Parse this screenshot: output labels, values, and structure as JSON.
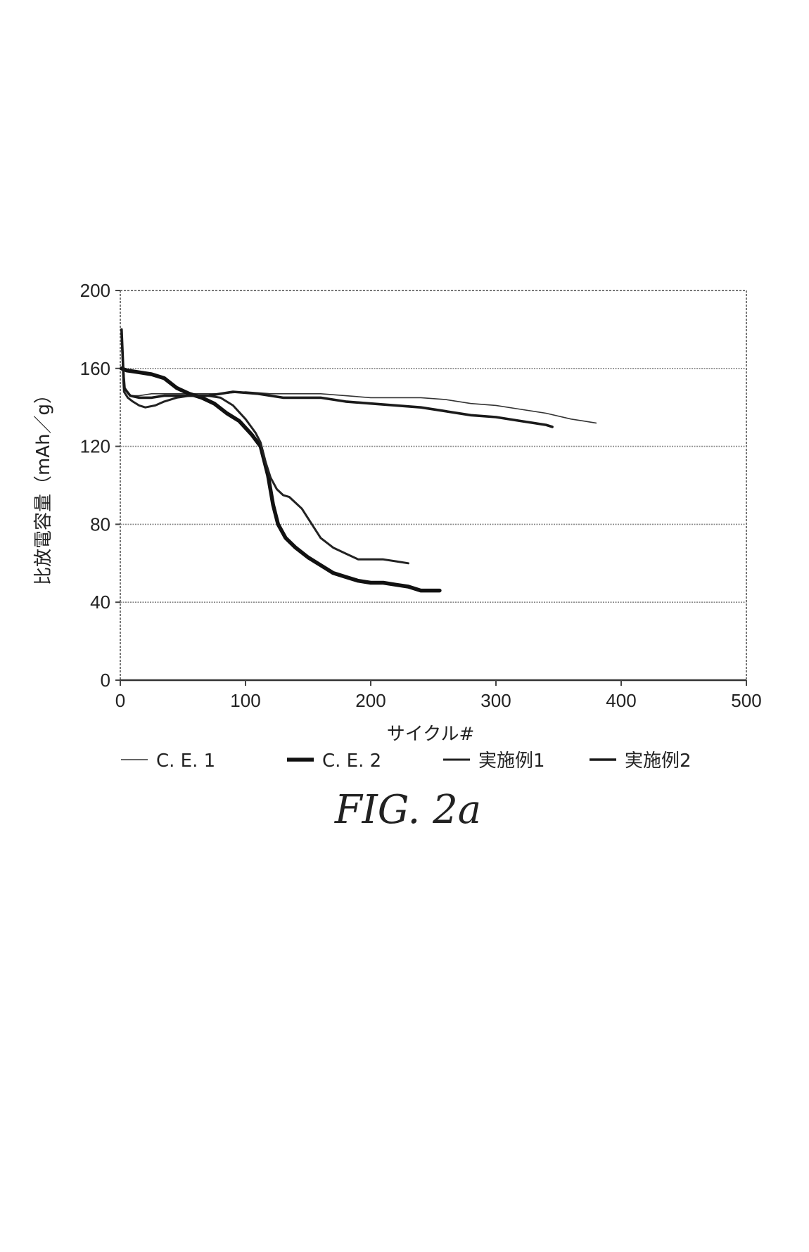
{
  "caption": "FIG. 2a",
  "chart_data": {
    "type": "line",
    "title": "",
    "xlabel": "サイクル#",
    "ylabel": "比放電容量（mAh／g）",
    "xlim": [
      0,
      500
    ],
    "ylim": [
      0,
      200
    ],
    "xticks": [
      0,
      100,
      200,
      300,
      400,
      500
    ],
    "yticks": [
      0,
      40,
      80,
      120,
      160,
      200
    ],
    "grid": "horizontal",
    "legend_position": "bottom",
    "series": [
      {
        "name": "C. E. 1",
        "color": "#333333",
        "points": [
          [
            1,
            172
          ],
          [
            4,
            150
          ],
          [
            8,
            146
          ],
          [
            15,
            146
          ],
          [
            25,
            147
          ],
          [
            40,
            147
          ],
          [
            60,
            147
          ],
          [
            80,
            147
          ],
          [
            100,
            148
          ],
          [
            120,
            147
          ],
          [
            140,
            147
          ],
          [
            160,
            147
          ],
          [
            180,
            146
          ],
          [
            200,
            145
          ],
          [
            220,
            145
          ],
          [
            240,
            145
          ],
          [
            260,
            144
          ],
          [
            280,
            142
          ],
          [
            300,
            141
          ],
          [
            320,
            139
          ],
          [
            340,
            137
          ],
          [
            360,
            134
          ],
          [
            370,
            133
          ],
          [
            380,
            132
          ]
        ]
      },
      {
        "name": "C. E. 2",
        "color": "#111111",
        "points": [
          [
            1,
            160
          ],
          [
            5,
            159
          ],
          [
            15,
            158
          ],
          [
            25,
            157
          ],
          [
            35,
            155
          ],
          [
            45,
            150
          ],
          [
            55,
            147
          ],
          [
            65,
            145
          ],
          [
            75,
            142
          ],
          [
            85,
            137
          ],
          [
            95,
            133
          ],
          [
            105,
            126
          ],
          [
            112,
            120
          ],
          [
            118,
            105
          ],
          [
            122,
            90
          ],
          [
            126,
            80
          ],
          [
            132,
            73
          ],
          [
            140,
            68
          ],
          [
            150,
            63
          ],
          [
            160,
            59
          ],
          [
            170,
            55
          ],
          [
            180,
            53
          ],
          [
            190,
            51
          ],
          [
            200,
            50
          ],
          [
            210,
            50
          ],
          [
            220,
            49
          ],
          [
            230,
            48
          ],
          [
            240,
            46
          ],
          [
            250,
            46
          ],
          [
            255,
            46
          ]
        ]
      },
      {
        "name": "実施例1",
        "color": "#222222",
        "points": [
          [
            1,
            178
          ],
          [
            3,
            148
          ],
          [
            6,
            145
          ],
          [
            10,
            143
          ],
          [
            15,
            141
          ],
          [
            20,
            140
          ],
          [
            28,
            141
          ],
          [
            35,
            143
          ],
          [
            45,
            145
          ],
          [
            55,
            146
          ],
          [
            65,
            146
          ],
          [
            70,
            146
          ],
          [
            80,
            145
          ],
          [
            90,
            141
          ],
          [
            100,
            134
          ],
          [
            108,
            127
          ],
          [
            112,
            122
          ],
          [
            116,
            112
          ],
          [
            120,
            104
          ],
          [
            125,
            98
          ],
          [
            130,
            95
          ],
          [
            135,
            94
          ],
          [
            140,
            91
          ],
          [
            145,
            88
          ],
          [
            150,
            83
          ],
          [
            155,
            78
          ],
          [
            160,
            73
          ],
          [
            170,
            68
          ],
          [
            180,
            65
          ],
          [
            190,
            62
          ],
          [
            200,
            62
          ],
          [
            210,
            62
          ],
          [
            220,
            61
          ],
          [
            230,
            60
          ]
        ]
      },
      {
        "name": "実施例2",
        "color": "#1a1a1a",
        "points": [
          [
            1,
            180
          ],
          [
            3,
            150
          ],
          [
            8,
            146
          ],
          [
            15,
            145
          ],
          [
            25,
            145
          ],
          [
            35,
            146
          ],
          [
            50,
            146
          ],
          [
            70,
            146
          ],
          [
            90,
            148
          ],
          [
            110,
            147
          ],
          [
            120,
            146
          ],
          [
            130,
            145
          ],
          [
            140,
            145
          ],
          [
            160,
            145
          ],
          [
            180,
            143
          ],
          [
            200,
            142
          ],
          [
            220,
            141
          ],
          [
            240,
            140
          ],
          [
            260,
            138
          ],
          [
            280,
            136
          ],
          [
            300,
            135
          ],
          [
            320,
            133
          ],
          [
            340,
            131
          ],
          [
            345,
            130
          ]
        ]
      }
    ]
  },
  "legend": [
    {
      "label": "C. E. 1",
      "color": "#333333"
    },
    {
      "label": "C. E. 2",
      "color": "#111111"
    },
    {
      "label": "実施例1",
      "color": "#222222"
    },
    {
      "label": "実施例2",
      "color": "#1a1a1a"
    }
  ]
}
